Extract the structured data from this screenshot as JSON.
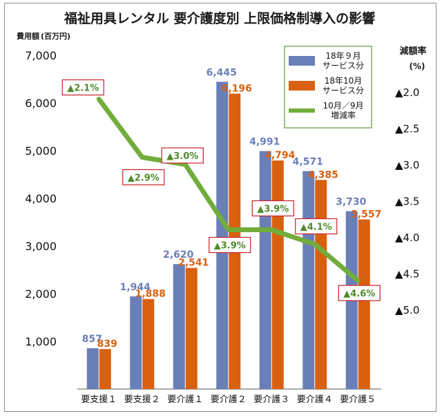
{
  "chart_data": {
    "type": "bar",
    "title": "福祉用具レンタル 要介護度別 上限価格制導入の影響",
    "ylabel": "費用額",
    "yunit": "(百万円)",
    "y2label": "減額率",
    "y2unit": "(%)",
    "ylim": [
      0,
      7000
    ],
    "yticks": [
      "7,000",
      "6,000",
      "5,000",
      "4,000",
      "3,000",
      "2,000",
      "1,000"
    ],
    "y2lim": [
      -5.0,
      -1.5
    ],
    "y2ticks": [
      "▲2.0",
      "▲2.5",
      "▲3.0",
      "▲3.5",
      "▲4.0",
      "▲4.5",
      "▲5.0"
    ],
    "categories": [
      "要支援１",
      "要支援２",
      "要介護１",
      "要介護２",
      "要介護３",
      "要介護４",
      "要介護５"
    ],
    "series": [
      {
        "name": "18年９月\nサービス分",
        "type": "bar",
        "color": "#6a7fb8",
        "values": [
          857,
          1944,
          2620,
          6445,
          4991,
          4571,
          3730
        ],
        "labels": [
          "857",
          "1,944",
          "2,620",
          "6,445",
          "4,991",
          "4,571",
          "3,730"
        ]
      },
      {
        "name": "18年10月\nサービス分",
        "type": "bar",
        "color": "#d9600f",
        "values": [
          839,
          1888,
          2541,
          6196,
          4794,
          4385,
          3557
        ],
        "labels": [
          "839",
          "1,888",
          "2,541",
          "6,196",
          "4,794",
          "4,385",
          "3,557"
        ]
      },
      {
        "name": "10月／9月\n増減率",
        "type": "line",
        "axis": "right",
        "color": "#72ad3c",
        "values": [
          -2.1,
          -2.9,
          -3.0,
          -3.9,
          -3.9,
          -4.1,
          -4.6
        ],
        "labels": [
          "▲2.1%",
          "▲2.9%",
          "▲3.0%",
          "▲3.9%",
          "▲3.9%",
          "▲4.1%",
          "▲4.6%"
        ]
      }
    ],
    "legend": "top-right",
    "grid": false
  }
}
